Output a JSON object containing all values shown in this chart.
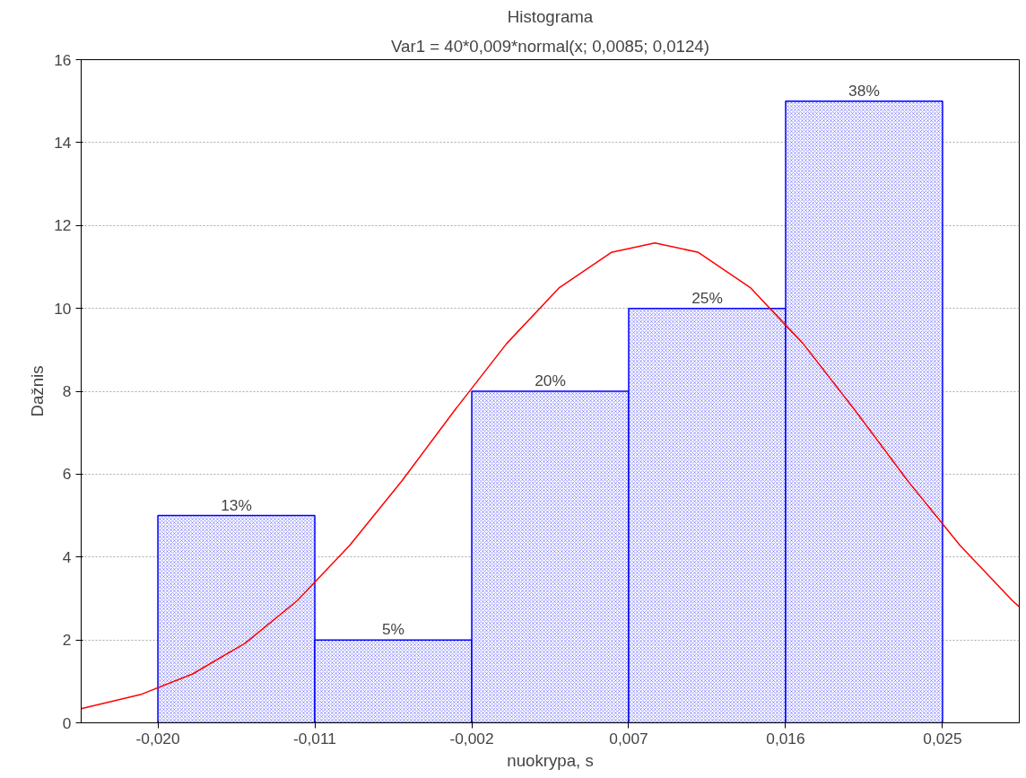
{
  "chart_data": {
    "type": "histogram",
    "title": "Histograma",
    "subtitle": "Var1 = 40*0,009*normal(x; 0,0085; 0,0124)",
    "xlabel": "nuokrypa, s",
    "ylabel": "Dažnis",
    "bins": [
      -0.02,
      -0.011,
      -0.002,
      0.007,
      0.016,
      0.025
    ],
    "values": [
      5,
      2,
      8,
      10,
      15
    ],
    "annotations": [
      {
        "text": "13%",
        "x": -0.0155,
        "y": 5
      },
      {
        "text": "5%",
        "x": -0.0065,
        "y": 2
      },
      {
        "text": "20%",
        "x": 0.0025,
        "y": 8
      },
      {
        "text": "25%",
        "x": 0.0115,
        "y": 10
      },
      {
        "text": "38%",
        "x": 0.0205,
        "y": 15
      }
    ],
    "color": "#0000ff",
    "series": [
      {
        "type": "line",
        "color": "#ff0000",
        "x": [
          -0.0244,
          -0.021,
          -0.018,
          -0.015,
          -0.012,
          -0.009,
          -0.006,
          -0.003,
          0.0,
          0.003,
          0.006,
          0.0085,
          0.011,
          0.014,
          0.017,
          0.02,
          0.023,
          0.026,
          0.029,
          0.0294
        ],
        "values": [
          0.34,
          0.68,
          1.18,
          1.92,
          2.95,
          4.28,
          5.84,
          7.53,
          9.15,
          10.49,
          11.35,
          11.58,
          11.35,
          10.49,
          9.15,
          7.53,
          5.84,
          4.28,
          2.95,
          2.8
        ]
      }
    ],
    "xlim": [
      -0.0244,
      0.0294
    ],
    "xticks": [
      {
        "value": -0.02,
        "label": "-0,020"
      },
      {
        "value": -0.011,
        "label": "-0,011"
      },
      {
        "value": -0.002,
        "label": "-0,002"
      },
      {
        "value": 0.007,
        "label": "0,007"
      },
      {
        "value": 0.016,
        "label": "0,016"
      },
      {
        "value": 0.025,
        "label": "0,025"
      }
    ],
    "ylim": [
      0,
      16
    ],
    "yticks": [
      0,
      2,
      4,
      6,
      8,
      10,
      12,
      14,
      16
    ],
    "grid": "y"
  }
}
